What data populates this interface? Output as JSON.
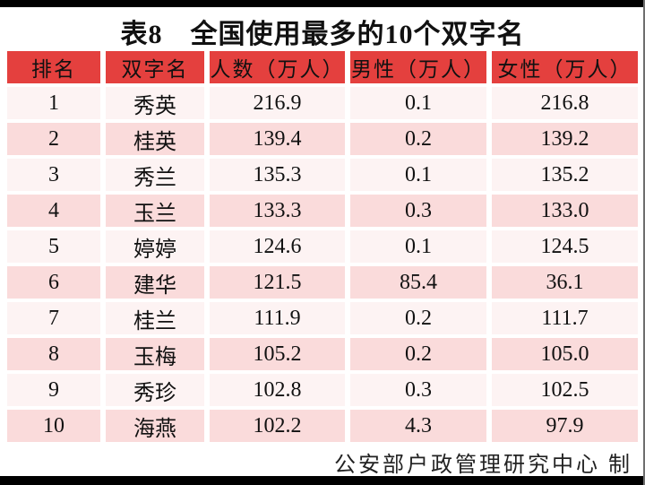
{
  "title": "表8　全国使用最多的10个双字名",
  "chart_data": {
    "type": "table",
    "title": "表8 全国使用最多的10个双字名",
    "columns": [
      "排名",
      "双字名",
      "人数（万人）",
      "男性（万人）",
      "女性（万人）"
    ],
    "rows": [
      [
        "1",
        "秀英",
        "216.9",
        "0.1",
        "216.8"
      ],
      [
        "2",
        "桂英",
        "139.4",
        "0.2",
        "139.2"
      ],
      [
        "3",
        "秀兰",
        "135.3",
        "0.1",
        "135.2"
      ],
      [
        "4",
        "玉兰",
        "133.3",
        "0.3",
        "133.0"
      ],
      [
        "5",
        "婷婷",
        "124.6",
        "0.1",
        "124.5"
      ],
      [
        "6",
        "建华",
        "121.5",
        "85.4",
        "36.1"
      ],
      [
        "7",
        "桂兰",
        "111.9",
        "0.2",
        "111.7"
      ],
      [
        "8",
        "玉梅",
        "105.2",
        "0.2",
        "105.0"
      ],
      [
        "9",
        "秀珍",
        "102.8",
        "0.3",
        "102.5"
      ],
      [
        "10",
        "海燕",
        "102.2",
        "4.3",
        "97.9"
      ]
    ],
    "credit": "公安部户政管理研究中心 制"
  },
  "colors": {
    "header_bg": "#e4403e",
    "row_light": "#fdf3f3",
    "row_pink": "#fadbdb",
    "text": "#111111",
    "frame": "#000000"
  }
}
